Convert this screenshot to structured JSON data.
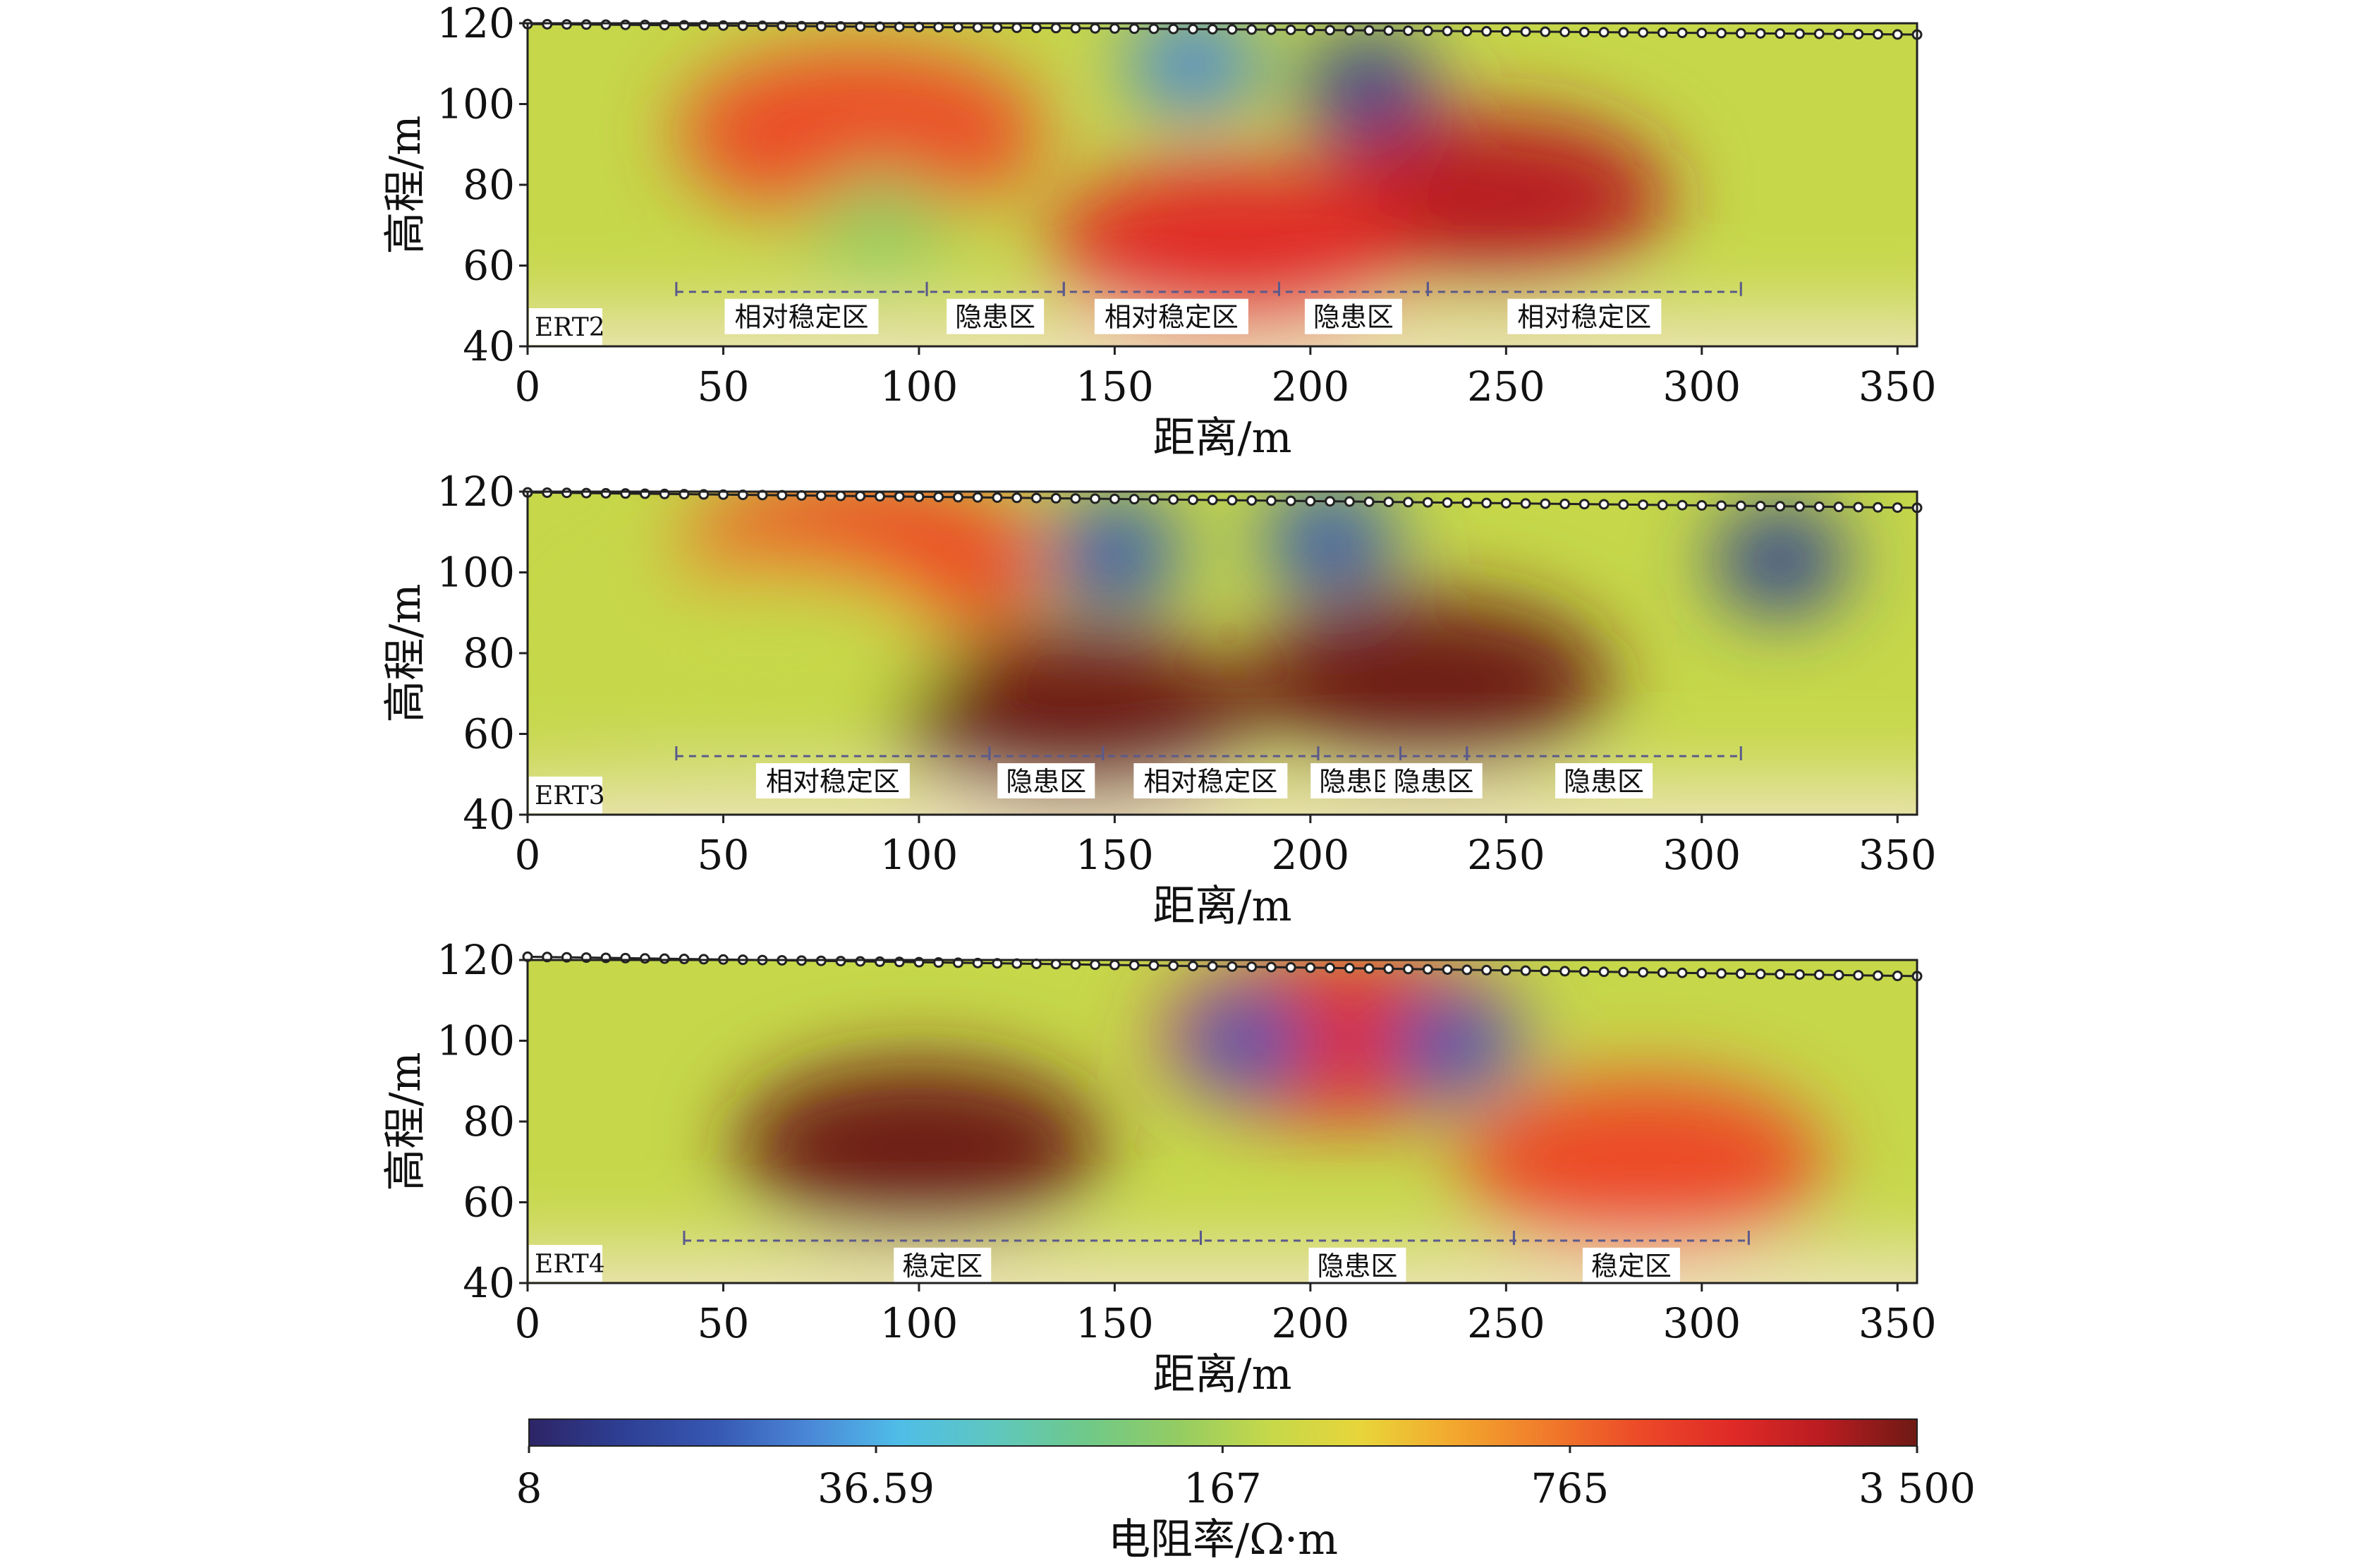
{
  "chart_data": [
    {
      "type": "heatmap",
      "profile_label": "ERT2",
      "xlabel": "距离/m",
      "ylabel": "高程/m",
      "xlim": [
        0,
        355
      ],
      "ylim": [
        40,
        120
      ],
      "xticks": [
        0,
        50,
        100,
        150,
        200,
        250,
        300,
        350
      ],
      "yticks": [
        40,
        60,
        80,
        100,
        120
      ],
      "surface_elevation": {
        "x": [
          0,
          355
        ],
        "y": [
          119.8,
          117.2
        ]
      },
      "bracket_elevation": 53.5,
      "zones": [
        {
          "label": "相对稳定区",
          "x_start": 38,
          "x_end": 102
        },
        {
          "label": "隐患区",
          "x_start": 102,
          "x_end": 137
        },
        {
          "label": "相对稳定区",
          "x_start": 137,
          "x_end": 192
        },
        {
          "label": "隐患区",
          "x_start": 192,
          "x_end": 230
        },
        {
          "label": "相对稳定区",
          "x_start": 230,
          "x_end": 310
        }
      ],
      "anomalies": [
        {
          "x": 215,
          "y": 104,
          "level": 0.08
        },
        {
          "x": 170,
          "y": 110,
          "level": 0.22
        },
        {
          "x": 85,
          "y": 93,
          "level": 0.8
        },
        {
          "x": 245,
          "y": 77,
          "level": 0.9
        },
        {
          "x": 180,
          "y": 65,
          "level": 0.88
        },
        {
          "x": 90,
          "y": 70,
          "level": 0.45
        }
      ]
    },
    {
      "type": "heatmap",
      "profile_label": "ERT3",
      "xlabel": "距离/m",
      "ylabel": "高程/m",
      "xlim": [
        0,
        355
      ],
      "ylim": [
        40,
        120
      ],
      "xticks": [
        0,
        50,
        100,
        150,
        200,
        250,
        300,
        350
      ],
      "yticks": [
        40,
        60,
        80,
        100,
        120
      ],
      "surface_elevation": {
        "x": [
          0,
          355
        ],
        "y": [
          119.8,
          116.0
        ]
      },
      "bracket_elevation": 54.5,
      "zones": [
        {
          "label": "相对稳定区",
          "x_start": 38,
          "x_end": 118
        },
        {
          "label": "隐患区",
          "x_start": 118,
          "x_end": 147
        },
        {
          "label": "相对稳定区",
          "x_start": 147,
          "x_end": 202
        },
        {
          "label": "隐患区",
          "x_start": 202,
          "x_end": 223
        },
        {
          "label": "隐患区",
          "x_start": 223,
          "x_end": 240
        },
        {
          "label": "隐患区",
          "x_start": 240,
          "x_end": 310
        }
      ],
      "anomalies": [
        {
          "x": 320,
          "y": 103,
          "level": 0.06
        },
        {
          "x": 150,
          "y": 105,
          "level": 0.15
        },
        {
          "x": 205,
          "y": 108,
          "level": 0.12
        },
        {
          "x": 230,
          "y": 73,
          "level": 1.0
        },
        {
          "x": 140,
          "y": 65,
          "level": 0.97
        },
        {
          "x": 85,
          "y": 103,
          "level": 0.82
        },
        {
          "x": 60,
          "y": 80,
          "level": 0.55
        }
      ]
    },
    {
      "type": "heatmap",
      "profile_label": "ERT4",
      "xlabel": "距离/m",
      "ylabel": "高程/m",
      "xlim": [
        0,
        355
      ],
      "ylim": [
        40,
        120
      ],
      "xticks": [
        0,
        50,
        100,
        150,
        200,
        250,
        300,
        350
      ],
      "yticks": [
        40,
        60,
        80,
        100,
        120
      ],
      "surface_elevation": {
        "x": [
          0,
          355
        ],
        "y": [
          120.8,
          116.0
        ]
      },
      "bracket_elevation": 50.5,
      "zones": [
        {
          "label": "稳定区",
          "x_start": 40,
          "x_end": 172
        },
        {
          "label": "隐患区",
          "x_start": 172,
          "x_end": 252
        },
        {
          "label": "稳定区",
          "x_start": 252,
          "x_end": 312
        }
      ],
      "anomalies": [
        {
          "x": 100,
          "y": 74,
          "level": 1.0
        },
        {
          "x": 208,
          "y": 101,
          "level": 0.88
        },
        {
          "x": 183,
          "y": 100,
          "level": 0.1
        },
        {
          "x": 237,
          "y": 99,
          "level": 0.1
        },
        {
          "x": 285,
          "y": 70,
          "level": 0.78
        }
      ]
    }
  ],
  "colorbar": {
    "label": "电阻率/Ω·m",
    "scale": "log",
    "range": [
      8,
      3500
    ],
    "tick_values": [
      8,
      36.59,
      167,
      765,
      3500
    ],
    "tick_labels": [
      "8",
      "36.59",
      "167",
      "765",
      "3 500"
    ],
    "colors": [
      "#2d2466",
      "#2e3f93",
      "#3657b2",
      "#4a86d6",
      "#4fbde8",
      "#5ec7c0",
      "#6ec98a",
      "#93cc63",
      "#c6d84a",
      "#e8d53a",
      "#f3a72d",
      "#f07b2b",
      "#ec4a28",
      "#e02a27",
      "#b81c21",
      "#6e1a14"
    ]
  }
}
